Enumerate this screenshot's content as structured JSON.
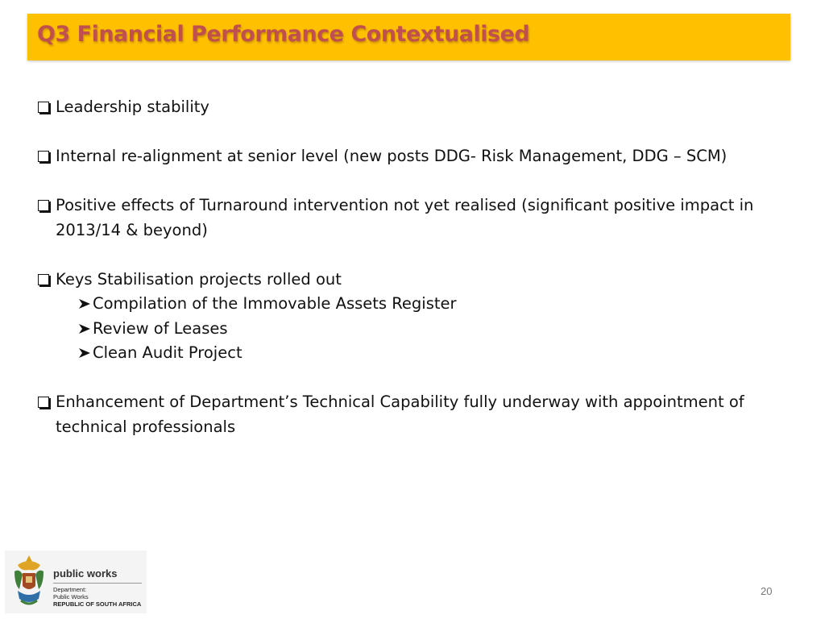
{
  "slide": {
    "title": "Q3 Financial Performance Contextualised",
    "page_number": "20"
  },
  "bullets": [
    {
      "icon": "checkbox-icon",
      "text": "Leadership stability"
    },
    {
      "icon": "checkbox-icon",
      "text": "Internal re-alignment at senior level (new posts DDG- Risk Management, DDG – SCM)"
    },
    {
      "icon": "checkbox-icon",
      "text": "Positive effects of Turnaround intervention not yet realised (significant positive impact in 2013/14 & beyond)"
    },
    {
      "icon": "checkbox-icon",
      "text": "Keys Stabilisation projects rolled out",
      "sub_items": [
        {
          "icon": "arrow-bullet-icon",
          "text": "Compilation of the Immovable Assets Register"
        },
        {
          "icon": "arrow-bullet-icon",
          "text": "Review of Leases"
        },
        {
          "icon": "arrow-bullet-icon",
          "text": "Clean Audit Project"
        }
      ]
    },
    {
      "icon": "checkbox-icon",
      "text": "Enhancement of Department’s Technical Capability fully underway with appointment of technical professionals"
    }
  ],
  "logo": {
    "brand": "public works",
    "line1": "Department:",
    "line2": "Public Works",
    "line3": "REPUBLIC OF SOUTH AFRICA"
  },
  "colors": {
    "title_bar": "#ffc000",
    "title_text": "#c0504d"
  }
}
